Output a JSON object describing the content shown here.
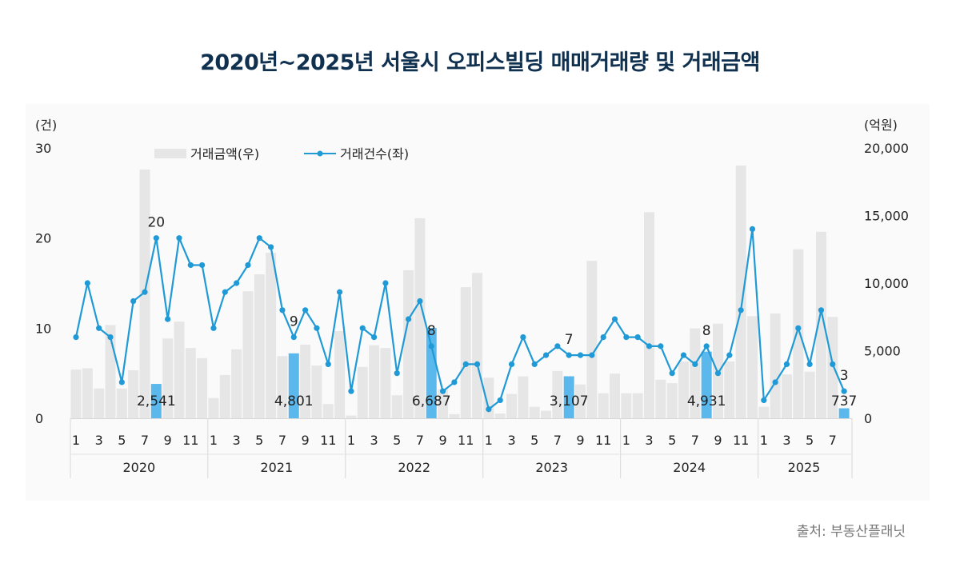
{
  "title": "2020년~2025년 서울시 오피스빌딩 매매거래량 및 거래금액",
  "source": "출처: 부동산플래닛",
  "colors": {
    "bar": "#e6e6e6",
    "highlight_bar": "#5bb8ec",
    "line": "#1f9ad6",
    "title": "#10304f"
  },
  "chart_data": {
    "type": "bar+line",
    "title": "2020년~2025년 서울시 오피스빌딩 매매거래량 및 거래금액",
    "left_axis": {
      "unit_label": "(건)",
      "range": [
        0,
        30
      ],
      "ticks": [
        "0",
        "10",
        "20",
        "30"
      ]
    },
    "right_axis": {
      "unit_label": "(억원)",
      "range": [
        0,
        20000
      ],
      "ticks": [
        "0",
        "5,000",
        "10,000",
        "15,000",
        "20,000"
      ]
    },
    "grid": false,
    "legend_position": "top-left",
    "years": [
      "2020",
      "2021",
      "2022",
      "2023",
      "2024",
      "2025"
    ],
    "month_tick_labels": [
      "1",
      "3",
      "5",
      "7",
      "9",
      "11"
    ],
    "months_per_year": [
      12,
      12,
      12,
      12,
      12,
      8
    ],
    "highlight_month": 8,
    "series": [
      {
        "name": "거래금액(우)",
        "type": "bar",
        "axis": "right",
        "values": [
          3600,
          3700,
          2200,
          6900,
          2200,
          3550,
          18400,
          2541,
          5900,
          7150,
          5200,
          4450,
          1500,
          3200,
          5100,
          9400,
          10650,
          12250,
          4600,
          4801,
          5450,
          3900,
          1050,
          6450,
          200,
          3800,
          5400,
          5200,
          1700,
          10950,
          14800,
          6687,
          2150,
          300,
          9700,
          10750,
          3000,
          350,
          1800,
          3100,
          850,
          550,
          3500,
          3107,
          2500,
          11650,
          1850,
          3300,
          1850,
          1850,
          15250,
          2850,
          2600,
          4200,
          6650,
          4931,
          7000,
          4200,
          18700,
          7550,
          850,
          7750,
          3250,
          12500,
          3450,
          13800,
          7500,
          737
        ],
        "data_labels": {
          "7": "2,541",
          "19": "4,801",
          "31": "6,687",
          "43": "3,107",
          "55": "4,931",
          "67": "737"
        }
      },
      {
        "name": "거래건수(좌)",
        "type": "line",
        "axis": "left",
        "values": [
          9,
          15,
          10,
          9,
          4,
          13,
          14,
          20,
          11,
          20,
          17,
          17,
          10,
          14,
          15,
          17,
          20,
          19,
          12,
          9,
          12,
          10,
          6,
          14,
          3,
          10,
          9,
          15,
          5,
          11,
          13,
          8,
          3,
          4,
          6,
          6,
          1,
          2,
          6,
          9,
          6,
          7,
          8,
          7,
          7,
          7,
          9,
          11,
          9,
          9,
          8,
          8,
          5,
          7,
          6,
          8,
          5,
          7,
          12,
          21,
          2,
          4,
          6,
          10,
          6,
          12,
          6,
          3
        ],
        "data_labels": {
          "7": "20",
          "19": "9",
          "31": "8",
          "43": "7",
          "55": "8",
          "67": "3"
        }
      }
    ]
  }
}
